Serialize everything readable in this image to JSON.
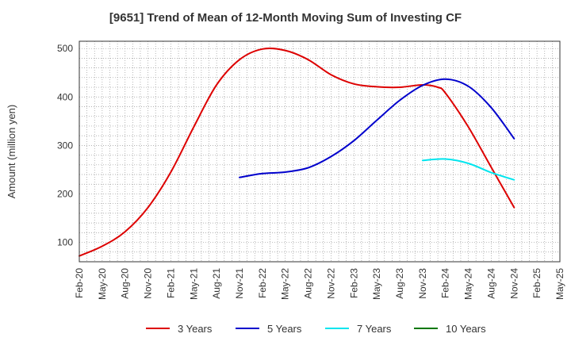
{
  "chart_data": {
    "type": "line",
    "title": "[9651]  Trend of Mean of 12-Month Moving Sum of Investing CF",
    "xlabel": "",
    "ylabel": "Amount (million yen)",
    "ylim": [
      60,
      515
    ],
    "yticks": [
      100,
      200,
      300,
      400,
      500
    ],
    "x_tick_labels": [
      "Feb-20",
      "May-20",
      "Aug-20",
      "Nov-20",
      "Feb-21",
      "May-21",
      "Aug-21",
      "Nov-21",
      "Feb-22",
      "May-22",
      "Aug-22",
      "Nov-22",
      "Feb-23",
      "May-23",
      "Aug-23",
      "Nov-23",
      "Feb-24",
      "May-24",
      "Aug-24",
      "Nov-24",
      "Feb-25",
      "May-25"
    ],
    "grid": true,
    "legend_position": "bottom",
    "series": [
      {
        "name": "3 Years",
        "color": "#dd0000",
        "points": [
          [
            "Feb-20",
            72
          ],
          [
            "May-20",
            92
          ],
          [
            "Aug-20",
            122
          ],
          [
            "Nov-20",
            172
          ],
          [
            "Feb-21",
            245
          ],
          [
            "May-21",
            338
          ],
          [
            "Aug-21",
            425
          ],
          [
            "Nov-21",
            477
          ],
          [
            "Feb-22",
            499
          ],
          [
            "May-22",
            496
          ],
          [
            "Aug-22",
            477
          ],
          [
            "Nov-22",
            446
          ],
          [
            "Feb-23",
            427
          ],
          [
            "May-23",
            421
          ],
          [
            "Aug-23",
            420
          ],
          [
            "Nov-23",
            425
          ],
          [
            "Jan-24",
            420
          ],
          [
            "Feb-24",
            408
          ],
          [
            "May-24",
            338
          ],
          [
            "Aug-24",
            255
          ],
          [
            "Nov-24",
            172
          ]
        ]
      },
      {
        "name": "5 Years",
        "color": "#0000cc",
        "points": [
          [
            "Nov-21",
            234
          ],
          [
            "Feb-22",
            242
          ],
          [
            "May-22",
            245
          ],
          [
            "Aug-22",
            254
          ],
          [
            "Nov-22",
            277
          ],
          [
            "Feb-23",
            310
          ],
          [
            "May-23",
            352
          ],
          [
            "Aug-23",
            393
          ],
          [
            "Nov-23",
            424
          ],
          [
            "Feb-24",
            437
          ],
          [
            "May-24",
            422
          ],
          [
            "Aug-24",
            378
          ],
          [
            "Nov-24",
            314
          ]
        ]
      },
      {
        "name": "7 Years",
        "color": "#00e5ee",
        "points": [
          [
            "Nov-23",
            269
          ],
          [
            "Feb-24",
            272
          ],
          [
            "May-24",
            263
          ],
          [
            "Aug-24",
            244
          ],
          [
            "Nov-24",
            229
          ]
        ]
      },
      {
        "name": "10 Years",
        "color": "#007700",
        "points": []
      }
    ]
  }
}
